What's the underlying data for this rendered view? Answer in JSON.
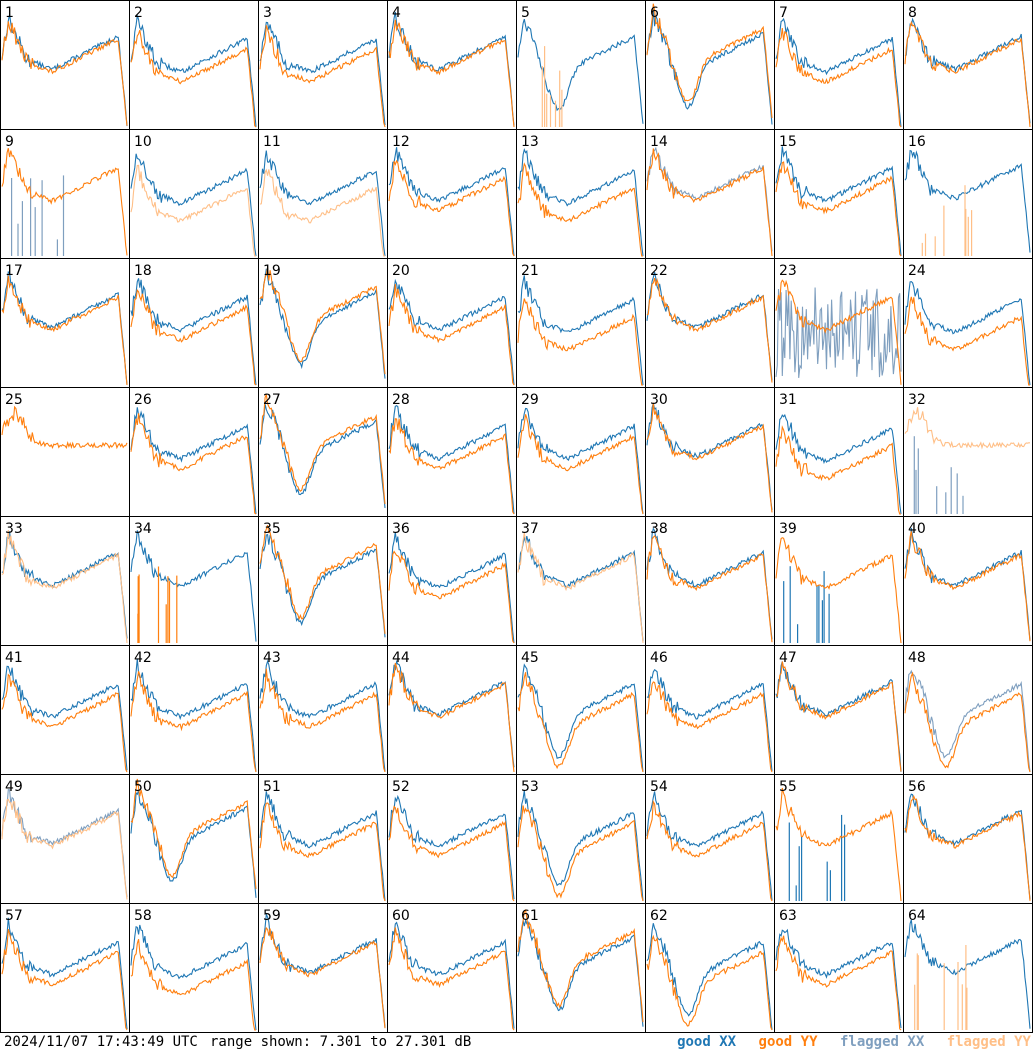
{
  "footer": {
    "timestamp": "2024/11/07 17:43:49 UTC",
    "range": "range shown: 7.301 to 27.301 dB",
    "legend": {
      "good_xx": "good XX",
      "good_yy": "good YY",
      "flagged_xx": "flagged XX",
      "flagged_yy": "flagged YY"
    }
  },
  "colors": {
    "good_xx": "#1f77b4",
    "good_yy": "#ff7f0e",
    "flagged_xx": "#7f9fbf",
    "flagged_yy": "#ffbf87"
  },
  "chart_data": {
    "type": "line",
    "description_units": "dB",
    "ylim": [
      7.301,
      27.301
    ],
    "grid": {
      "rows": 8,
      "cols": 8
    },
    "tiles": [
      {
        "id": "1",
        "xx": "good",
        "yy": "good",
        "shape": "collapse",
        "rel": 0
      },
      {
        "id": "2",
        "xx": "good",
        "yy": "good",
        "shape": "typical",
        "rel": 1
      },
      {
        "id": "3",
        "xx": "good",
        "yy": "good",
        "shape": "typical",
        "rel": 1
      },
      {
        "id": "4",
        "xx": "good",
        "yy": "good",
        "shape": "typical",
        "rel": 0
      },
      {
        "id": "5",
        "xx": "good",
        "yy": "flagged",
        "shape": "dip",
        "rel": 0,
        "yy_spikes": true
      },
      {
        "id": "6",
        "xx": "good",
        "yy": "good",
        "shape": "dip",
        "rel": -1
      },
      {
        "id": "7",
        "xx": "good",
        "yy": "good",
        "shape": "typical",
        "rel": 1
      },
      {
        "id": "8",
        "xx": "good",
        "yy": "good",
        "shape": "collapse",
        "rel": 0
      },
      {
        "id": "9",
        "xx": "flagged",
        "yy": "good",
        "shape": "typical",
        "rel": 0,
        "xx_spikes": true
      },
      {
        "id": "10",
        "xx": "good",
        "yy": "flagged",
        "shape": "typical",
        "rel": 2
      },
      {
        "id": "11",
        "xx": "good",
        "yy": "flagged",
        "shape": "typical",
        "rel": 2
      },
      {
        "id": "12",
        "xx": "good",
        "yy": "good",
        "shape": "typical",
        "rel": 1
      },
      {
        "id": "13",
        "xx": "good",
        "yy": "good",
        "shape": "typical",
        "rel": 2
      },
      {
        "id": "14",
        "xx": "flagged",
        "yy": "good",
        "shape": "typical",
        "rel": 0
      },
      {
        "id": "15",
        "xx": "good",
        "yy": "good",
        "shape": "typical",
        "rel": 1
      },
      {
        "id": "16",
        "xx": "good",
        "yy": "flagged",
        "shape": "typical",
        "rel": 0,
        "yy_spikes": true
      },
      {
        "id": "17",
        "xx": "good",
        "yy": "good",
        "shape": "typical",
        "rel": 0
      },
      {
        "id": "18",
        "xx": "good",
        "yy": "good",
        "shape": "typical",
        "rel": 1
      },
      {
        "id": "19",
        "xx": "good",
        "yy": "good",
        "shape": "dip",
        "rel": -1
      },
      {
        "id": "20",
        "xx": "good",
        "yy": "good",
        "shape": "typical",
        "rel": 1
      },
      {
        "id": "21",
        "xx": "good",
        "yy": "good",
        "shape": "typical",
        "rel": 2
      },
      {
        "id": "22",
        "xx": "good",
        "yy": "good",
        "shape": "typical",
        "rel": 0
      },
      {
        "id": "23",
        "xx": "flagged",
        "yy": "good",
        "shape": "typical",
        "rel": 0,
        "xx_noise": true
      },
      {
        "id": "24",
        "xx": "good",
        "yy": "good",
        "shape": "typical",
        "rel": 2
      },
      {
        "id": "25",
        "xx": "good",
        "yy": "good",
        "shape": "flat",
        "rel": 0,
        "xx_hidden": true
      },
      {
        "id": "26",
        "xx": "good",
        "yy": "good",
        "shape": "typical",
        "rel": 1
      },
      {
        "id": "27",
        "xx": "good",
        "yy": "good",
        "shape": "dip",
        "rel": -1
      },
      {
        "id": "28",
        "xx": "good",
        "yy": "good",
        "shape": "typical",
        "rel": 1
      },
      {
        "id": "29",
        "xx": "good",
        "yy": "good",
        "shape": "typical",
        "rel": 1
      },
      {
        "id": "30",
        "xx": "good",
        "yy": "good",
        "shape": "typical",
        "rel": 0
      },
      {
        "id": "31",
        "xx": "good",
        "yy": "good",
        "shape": "typical",
        "rel": 2
      },
      {
        "id": "32",
        "xx": "flagged",
        "yy": "flagged",
        "shape": "flat",
        "rel": 0,
        "xx_spikes": true
      },
      {
        "id": "33",
        "xx": "good",
        "yy": "flagged",
        "shape": "typical",
        "rel": 0
      },
      {
        "id": "34",
        "xx": "good",
        "yy": "good",
        "shape": "typical",
        "rel": 0,
        "yy_spikes": true
      },
      {
        "id": "35",
        "xx": "good",
        "yy": "good",
        "shape": "dip",
        "rel": -1
      },
      {
        "id": "36",
        "xx": "good",
        "yy": "good",
        "shape": "typical",
        "rel": 1
      },
      {
        "id": "37",
        "xx": "good",
        "yy": "flagged",
        "shape": "typical",
        "rel": 0
      },
      {
        "id": "38",
        "xx": "good",
        "yy": "good",
        "shape": "typical",
        "rel": 0
      },
      {
        "id": "39",
        "xx": "good",
        "yy": "good",
        "shape": "typical",
        "rel": 0,
        "xx_spikes": true
      },
      {
        "id": "40",
        "xx": "good",
        "yy": "good",
        "shape": "typical",
        "rel": 0
      },
      {
        "id": "41",
        "xx": "good",
        "yy": "good",
        "shape": "typical",
        "rel": 1
      },
      {
        "id": "42",
        "xx": "good",
        "yy": "good",
        "shape": "typical",
        "rel": 1
      },
      {
        "id": "43",
        "xx": "good",
        "yy": "good",
        "shape": "typical",
        "rel": 1
      },
      {
        "id": "44",
        "xx": "good",
        "yy": "good",
        "shape": "typical",
        "rel": 0
      },
      {
        "id": "45",
        "xx": "good",
        "yy": "good",
        "shape": "dip",
        "rel": 1
      },
      {
        "id": "46",
        "xx": "good",
        "yy": "good",
        "shape": "typical",
        "rel": 1
      },
      {
        "id": "47",
        "xx": "good",
        "yy": "good",
        "shape": "typical",
        "rel": 0
      },
      {
        "id": "48",
        "xx": "flagged",
        "yy": "good",
        "shape": "dip",
        "rel": 1
      },
      {
        "id": "49",
        "xx": "flagged",
        "yy": "flagged",
        "shape": "typical",
        "rel": 0
      },
      {
        "id": "50",
        "xx": "good",
        "yy": "good",
        "shape": "dip",
        "rel": -1
      },
      {
        "id": "51",
        "xx": "good",
        "yy": "good",
        "shape": "typical",
        "rel": 1
      },
      {
        "id": "52",
        "xx": "good",
        "yy": "good",
        "shape": "typical",
        "rel": 1
      },
      {
        "id": "53",
        "xx": "good",
        "yy": "good",
        "shape": "dip",
        "rel": 1
      },
      {
        "id": "54",
        "xx": "good",
        "yy": "good",
        "shape": "typical",
        "rel": 1
      },
      {
        "id": "55",
        "xx": "good",
        "yy": "good",
        "shape": "typical",
        "rel": 0,
        "xx_spikes": true
      },
      {
        "id": "56",
        "xx": "good",
        "yy": "good",
        "shape": "typical",
        "rel": 0
      },
      {
        "id": "57",
        "xx": "good",
        "yy": "good",
        "shape": "typical",
        "rel": 1
      },
      {
        "id": "58",
        "xx": "good",
        "yy": "good",
        "shape": "typical",
        "rel": 2
      },
      {
        "id": "59",
        "xx": "good",
        "yy": "good",
        "shape": "collapse",
        "rel": 0
      },
      {
        "id": "60",
        "xx": "good",
        "yy": "good",
        "shape": "typical",
        "rel": 1
      },
      {
        "id": "61",
        "xx": "good",
        "yy": "good",
        "shape": "dip",
        "rel": -1
      },
      {
        "id": "62",
        "xx": "good",
        "yy": "good",
        "shape": "dip",
        "rel": 1
      },
      {
        "id": "63",
        "xx": "good",
        "yy": "good",
        "shape": "typical",
        "rel": 1
      },
      {
        "id": "64",
        "xx": "good",
        "yy": "flagged",
        "shape": "typical",
        "rel": 0,
        "yy_spikes": true
      }
    ]
  }
}
